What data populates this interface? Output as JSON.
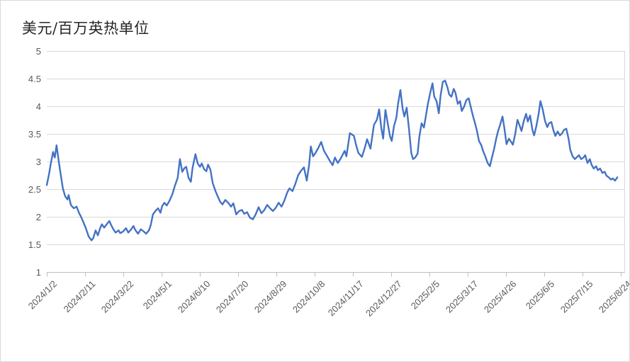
{
  "chart_data": {
    "type": "line",
    "title": "美元/百万英热单位",
    "legend": "none",
    "grid": "horizontal",
    "y_axis": {
      "min": 1,
      "max": 5,
      "tick_values": [
        5,
        4.5,
        4,
        3.5,
        3,
        2.5,
        2,
        1.5,
        1
      ],
      "tick_labels": [
        "5",
        "4.5",
        "4",
        "3.5",
        "3",
        "2.5",
        "2",
        "1.5",
        "1"
      ]
    },
    "x_axis": {
      "start_label": "2024/1/2",
      "end_label": "2025/8/24",
      "tick_labels": [
        "2024/1/2",
        "2024/2/11",
        "2024/3/22",
        "2024/5/1",
        "2024/6/10",
        "2024/7/20",
        "2024/8/29",
        "2024/10/8",
        "2024/11/17",
        "2024/12/27",
        "2025/2/5",
        "2025/3/17",
        "2025/4/26",
        "2025/6/5",
        "2025/7/15",
        "2025/8/24"
      ]
    },
    "colors": {
      "line": "#4472C4",
      "gridline": "#d9d9d9",
      "axis": "#bfbfbf",
      "tick_label": "#595959",
      "title": "#262626",
      "frame_border": "#d9d9d9"
    },
    "series": [
      {
        "color": "#4472C4",
        "points": [
          [
            0,
            2.58
          ],
          [
            0.004,
            2.78
          ],
          [
            0.007,
            2.97
          ],
          [
            0.011,
            3.18
          ],
          [
            0.014,
            3.08
          ],
          [
            0.017,
            3.3
          ],
          [
            0.021,
            3.0
          ],
          [
            0.025,
            2.72
          ],
          [
            0.028,
            2.52
          ],
          [
            0.032,
            2.38
          ],
          [
            0.036,
            2.32
          ],
          [
            0.038,
            2.4
          ],
          [
            0.042,
            2.22
          ],
          [
            0.047,
            2.16
          ],
          [
            0.052,
            2.19
          ],
          [
            0.056,
            2.08
          ],
          [
            0.059,
            2.02
          ],
          [
            0.063,
            1.93
          ],
          [
            0.068,
            1.8
          ],
          [
            0.073,
            1.65
          ],
          [
            0.078,
            1.58
          ],
          [
            0.081,
            1.62
          ],
          [
            0.085,
            1.76
          ],
          [
            0.089,
            1.67
          ],
          [
            0.093,
            1.8
          ],
          [
            0.096,
            1.87
          ],
          [
            0.1,
            1.81
          ],
          [
            0.105,
            1.88
          ],
          [
            0.109,
            1.93
          ],
          [
            0.112,
            1.86
          ],
          [
            0.116,
            1.78
          ],
          [
            0.12,
            1.72
          ],
          [
            0.125,
            1.76
          ],
          [
            0.128,
            1.71
          ],
          [
            0.133,
            1.74
          ],
          [
            0.138,
            1.8
          ],
          [
            0.142,
            1.72
          ],
          [
            0.147,
            1.78
          ],
          [
            0.151,
            1.84
          ],
          [
            0.154,
            1.77
          ],
          [
            0.159,
            1.7
          ],
          [
            0.164,
            1.78
          ],
          [
            0.169,
            1.74
          ],
          [
            0.173,
            1.7
          ],
          [
            0.178,
            1.76
          ],
          [
            0.181,
            1.85
          ],
          [
            0.185,
            2.05
          ],
          [
            0.19,
            2.12
          ],
          [
            0.194,
            2.16
          ],
          [
            0.198,
            2.08
          ],
          [
            0.201,
            2.2
          ],
          [
            0.205,
            2.26
          ],
          [
            0.209,
            2.21
          ],
          [
            0.214,
            2.3
          ],
          [
            0.219,
            2.42
          ],
          [
            0.223,
            2.56
          ],
          [
            0.228,
            2.71
          ],
          [
            0.232,
            3.05
          ],
          [
            0.236,
            2.82
          ],
          [
            0.24,
            2.89
          ],
          [
            0.243,
            2.91
          ],
          [
            0.247,
            2.71
          ],
          [
            0.251,
            2.64
          ],
          [
            0.254,
            2.89
          ],
          [
            0.259,
            3.14
          ],
          [
            0.263,
            2.97
          ],
          [
            0.267,
            2.91
          ],
          [
            0.27,
            2.97
          ],
          [
            0.274,
            2.87
          ],
          [
            0.278,
            2.83
          ],
          [
            0.281,
            2.95
          ],
          [
            0.285,
            2.86
          ],
          [
            0.289,
            2.62
          ],
          [
            0.294,
            2.47
          ],
          [
            0.298,
            2.37
          ],
          [
            0.302,
            2.28
          ],
          [
            0.306,
            2.23
          ],
          [
            0.311,
            2.31
          ],
          [
            0.316,
            2.26
          ],
          [
            0.321,
            2.19
          ],
          [
            0.325,
            2.25
          ],
          [
            0.33,
            2.05
          ],
          [
            0.335,
            2.11
          ],
          [
            0.34,
            2.13
          ],
          [
            0.344,
            2.06
          ],
          [
            0.349,
            2.09
          ],
          [
            0.354,
            1.99
          ],
          [
            0.359,
            1.96
          ],
          [
            0.364,
            2.05
          ],
          [
            0.369,
            2.18
          ],
          [
            0.374,
            2.07
          ],
          [
            0.379,
            2.13
          ],
          [
            0.384,
            2.22
          ],
          [
            0.389,
            2.16
          ],
          [
            0.394,
            2.11
          ],
          [
            0.399,
            2.17
          ],
          [
            0.404,
            2.26
          ],
          [
            0.409,
            2.19
          ],
          [
            0.414,
            2.3
          ],
          [
            0.419,
            2.45
          ],
          [
            0.423,
            2.52
          ],
          [
            0.428,
            2.47
          ],
          [
            0.433,
            2.6
          ],
          [
            0.438,
            2.76
          ],
          [
            0.443,
            2.84
          ],
          [
            0.448,
            2.9
          ],
          [
            0.453,
            2.66
          ],
          [
            0.457,
            2.95
          ],
          [
            0.46,
            3.28
          ],
          [
            0.464,
            3.1
          ],
          [
            0.468,
            3.16
          ],
          [
            0.473,
            3.25
          ],
          [
            0.478,
            3.36
          ],
          [
            0.483,
            3.2
          ],
          [
            0.488,
            3.11
          ],
          [
            0.493,
            3.02
          ],
          [
            0.498,
            2.94
          ],
          [
            0.502,
            3.08
          ],
          [
            0.507,
            2.98
          ],
          [
            0.512,
            3.06
          ],
          [
            0.519,
            3.2
          ],
          [
            0.522,
            3.1
          ],
          [
            0.528,
            3.52
          ],
          [
            0.535,
            3.47
          ],
          [
            0.539,
            3.3
          ],
          [
            0.543,
            3.16
          ],
          [
            0.549,
            3.09
          ],
          [
            0.554,
            3.25
          ],
          [
            0.558,
            3.41
          ],
          [
            0.564,
            3.24
          ],
          [
            0.57,
            3.67
          ],
          [
            0.575,
            3.76
          ],
          [
            0.579,
            3.95
          ],
          [
            0.583,
            3.6
          ],
          [
            0.586,
            3.42
          ],
          [
            0.59,
            3.94
          ],
          [
            0.594,
            3.7
          ],
          [
            0.598,
            3.46
          ],
          [
            0.601,
            3.38
          ],
          [
            0.605,
            3.65
          ],
          [
            0.609,
            3.8
          ],
          [
            0.612,
            4.05
          ],
          [
            0.616,
            4.3
          ],
          [
            0.62,
            3.96
          ],
          [
            0.623,
            3.82
          ],
          [
            0.627,
            3.98
          ],
          [
            0.631,
            3.6
          ],
          [
            0.635,
            3.16
          ],
          [
            0.638,
            3.05
          ],
          [
            0.642,
            3.08
          ],
          [
            0.646,
            3.15
          ],
          [
            0.649,
            3.45
          ],
          [
            0.653,
            3.7
          ],
          [
            0.657,
            3.62
          ],
          [
            0.66,
            3.8
          ],
          [
            0.664,
            4.05
          ],
          [
            0.668,
            4.25
          ],
          [
            0.672,
            4.42
          ],
          [
            0.675,
            4.18
          ],
          [
            0.679,
            4.1
          ],
          [
            0.683,
            3.88
          ],
          [
            0.686,
            4.2
          ],
          [
            0.69,
            4.45
          ],
          [
            0.694,
            4.47
          ],
          [
            0.698,
            4.35
          ],
          [
            0.701,
            4.22
          ],
          [
            0.705,
            4.18
          ],
          [
            0.709,
            4.32
          ],
          [
            0.712,
            4.25
          ],
          [
            0.716,
            4.05
          ],
          [
            0.72,
            4.1
          ],
          [
            0.723,
            3.92
          ],
          [
            0.727,
            4.0
          ],
          [
            0.731,
            4.12
          ],
          [
            0.735,
            4.15
          ],
          [
            0.738,
            4.02
          ],
          [
            0.742,
            3.85
          ],
          [
            0.746,
            3.7
          ],
          [
            0.749,
            3.58
          ],
          [
            0.753,
            3.38
          ],
          [
            0.757,
            3.3
          ],
          [
            0.76,
            3.2
          ],
          [
            0.764,
            3.1
          ],
          [
            0.768,
            2.98
          ],
          [
            0.772,
            2.92
          ],
          [
            0.775,
            3.06
          ],
          [
            0.779,
            3.22
          ],
          [
            0.783,
            3.42
          ],
          [
            0.786,
            3.55
          ],
          [
            0.79,
            3.68
          ],
          [
            0.794,
            3.82
          ],
          [
            0.797,
            3.62
          ],
          [
            0.801,
            3.32
          ],
          [
            0.805,
            3.42
          ],
          [
            0.809,
            3.36
          ],
          [
            0.812,
            3.31
          ],
          [
            0.816,
            3.5
          ],
          [
            0.82,
            3.76
          ],
          [
            0.823,
            3.68
          ],
          [
            0.827,
            3.56
          ],
          [
            0.831,
            3.74
          ],
          [
            0.835,
            3.87
          ],
          [
            0.838,
            3.73
          ],
          [
            0.842,
            3.84
          ],
          [
            0.846,
            3.58
          ],
          [
            0.849,
            3.48
          ],
          [
            0.853,
            3.65
          ],
          [
            0.857,
            3.88
          ],
          [
            0.86,
            4.1
          ],
          [
            0.864,
            3.95
          ],
          [
            0.868,
            3.74
          ],
          [
            0.872,
            3.63
          ],
          [
            0.875,
            3.7
          ],
          [
            0.879,
            3.72
          ],
          [
            0.883,
            3.56
          ],
          [
            0.886,
            3.47
          ],
          [
            0.89,
            3.55
          ],
          [
            0.894,
            3.48
          ],
          [
            0.898,
            3.52
          ],
          [
            0.901,
            3.58
          ],
          [
            0.905,
            3.6
          ],
          [
            0.909,
            3.42
          ],
          [
            0.912,
            3.22
          ],
          [
            0.916,
            3.1
          ],
          [
            0.92,
            3.05
          ],
          [
            0.923,
            3.08
          ],
          [
            0.927,
            3.12
          ],
          [
            0.931,
            3.05
          ],
          [
            0.935,
            3.08
          ],
          [
            0.938,
            3.12
          ],
          [
            0.942,
            2.98
          ],
          [
            0.946,
            3.05
          ],
          [
            0.949,
            2.95
          ],
          [
            0.953,
            2.88
          ],
          [
            0.957,
            2.92
          ],
          [
            0.96,
            2.85
          ],
          [
            0.964,
            2.88
          ],
          [
            0.968,
            2.8
          ],
          [
            0.972,
            2.82
          ],
          [
            0.975,
            2.75
          ],
          [
            0.979,
            2.72
          ],
          [
            0.983,
            2.68
          ],
          [
            0.986,
            2.7
          ],
          [
            0.99,
            2.66
          ],
          [
            0.994,
            2.72
          ]
        ]
      }
    ]
  }
}
